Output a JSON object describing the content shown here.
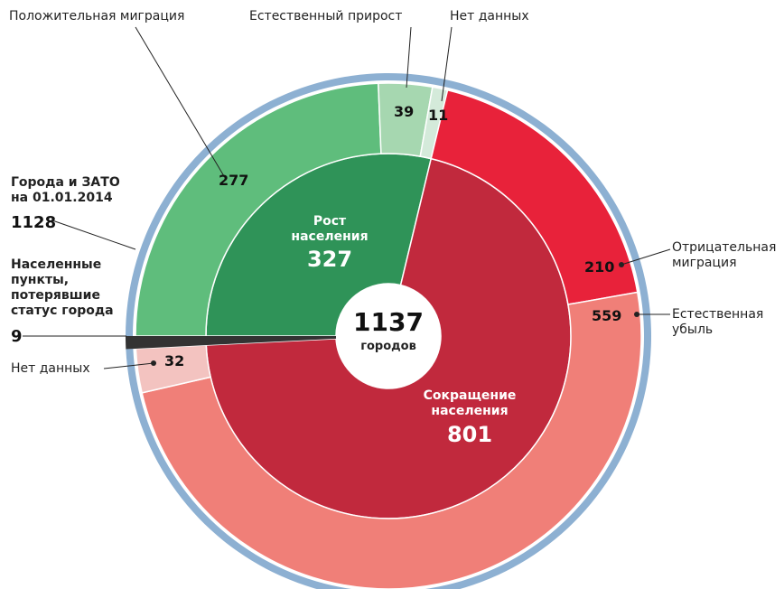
{
  "chart_data": {
    "type": "sunburst",
    "total": 1137,
    "total_label": "городов",
    "ring": {
      "name": "Города и ЗАТО на 01.01.2014",
      "value": 1128,
      "color": "#8db0d2"
    },
    "groups": [
      {
        "name": "Рост населения",
        "value": 327,
        "color": "#2f9358",
        "children": [
          {
            "name": "Положительная миграция",
            "value": 277,
            "color": "#5fbd7c"
          },
          {
            "name": "Естественный прирост",
            "value": 39,
            "color": "#a6d7b0"
          },
          {
            "name": "Нет данных",
            "value": 11,
            "color": "#d4eada"
          }
        ]
      },
      {
        "name": "Сокращение населения",
        "value": 801,
        "color": "#c1293d",
        "children": [
          {
            "name": "Отрицательная миграция",
            "value": 210,
            "color": "#e8223a"
          },
          {
            "name": "Естественная убыль",
            "value": 559,
            "color": "#f07f78"
          },
          {
            "name": "Нет данных",
            "value": 32,
            "color": "#f3c3c0"
          }
        ]
      }
    ],
    "lost": {
      "name": "Населенные пункты, потерявшие статус города",
      "value": 9,
      "color": "#333333"
    }
  }
}
